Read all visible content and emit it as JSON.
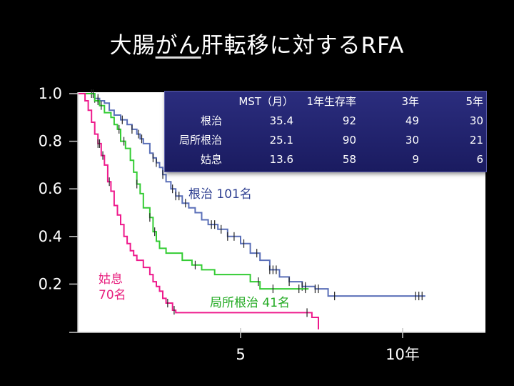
{
  "page_title": {
    "pre": "大腸",
    "underlined": "がん",
    "post": "肝転移に対するRFA"
  },
  "summary_table": {
    "headers": [
      "",
      "MST（月）",
      "1年生存率",
      "3年",
      "5年"
    ],
    "rows": [
      [
        "根治",
        "35.4",
        "92",
        "49",
        "30"
      ],
      [
        "局所根治",
        "25.1",
        "90",
        "30",
        "21"
      ],
      [
        "姑息",
        "13.6",
        "58",
        "9",
        "6"
      ]
    ]
  },
  "chart_data": {
    "type": "line",
    "title": "大腸がん肝転移に対するRFA",
    "xlabel": "",
    "ylabel": "",
    "xlim": [
      0,
      12.6
    ],
    "ylim": [
      0,
      1.0
    ],
    "y_ticks": [
      "1.0",
      "0.8",
      "0.6",
      "0.4",
      "0.2"
    ],
    "y_tick_values": [
      1.0,
      0.8,
      0.6,
      0.4,
      0.2
    ],
    "x_ticks": [
      "5",
      "10年"
    ],
    "x_tick_values": [
      5,
      10
    ],
    "x_unit": "年",
    "grid": false,
    "series": [
      {
        "name": "根治 101名",
        "label_text": "根治 101名",
        "color": "#5a6fb8",
        "label_color": "#2e3f91",
        "points": [
          [
            0,
            1.0
          ],
          [
            0.35,
            1.0
          ],
          [
            0.5,
            0.98
          ],
          [
            0.65,
            0.97
          ],
          [
            0.8,
            0.96
          ],
          [
            0.95,
            0.93
          ],
          [
            1.1,
            0.91
          ],
          [
            1.3,
            0.89
          ],
          [
            1.5,
            0.87
          ],
          [
            1.65,
            0.85
          ],
          [
            1.8,
            0.83
          ],
          [
            1.9,
            0.81
          ],
          [
            2.0,
            0.79
          ],
          [
            2.2,
            0.75
          ],
          [
            2.3,
            0.73
          ],
          [
            2.4,
            0.71
          ],
          [
            2.5,
            0.69
          ],
          [
            2.6,
            0.66
          ],
          [
            2.7,
            0.63
          ],
          [
            2.85,
            0.6
          ],
          [
            3.0,
            0.57
          ],
          [
            3.2,
            0.54
          ],
          [
            3.4,
            0.52
          ],
          [
            3.6,
            0.5
          ],
          [
            3.8,
            0.47
          ],
          [
            4.0,
            0.45
          ],
          [
            4.3,
            0.43
          ],
          [
            4.6,
            0.4
          ],
          [
            5.0,
            0.37
          ],
          [
            5.3,
            0.33
          ],
          [
            5.6,
            0.3
          ],
          [
            5.9,
            0.26
          ],
          [
            6.2,
            0.23
          ],
          [
            6.5,
            0.21
          ],
          [
            6.9,
            0.19
          ],
          [
            7.3,
            0.18
          ],
          [
            7.7,
            0.15
          ],
          [
            10.7,
            0.15
          ]
        ],
        "censor_x": [
          0.4,
          0.5,
          0.6,
          1.35,
          1.65,
          1.85,
          1.95,
          2.3,
          2.4,
          2.6,
          2.9,
          3.0,
          3.1,
          3.3,
          4.1,
          4.2,
          4.4,
          4.6,
          4.8,
          5.1,
          5.5,
          5.9,
          6.0,
          6.1,
          6.5,
          6.9,
          7.0,
          7.3,
          7.4,
          7.9,
          10.4,
          10.5,
          10.6
        ]
      },
      {
        "name": "局所根治 41名",
        "label_text": "局所根治 41名",
        "color": "#33cc33",
        "label_color": "#22aa22",
        "points": [
          [
            0,
            1.0
          ],
          [
            0.35,
            1.0
          ],
          [
            0.5,
            0.97
          ],
          [
            0.65,
            0.95
          ],
          [
            0.8,
            0.92
          ],
          [
            1.0,
            0.9
          ],
          [
            1.1,
            0.87
          ],
          [
            1.2,
            0.85
          ],
          [
            1.3,
            0.8
          ],
          [
            1.45,
            0.77
          ],
          [
            1.6,
            0.72
          ],
          [
            1.7,
            0.67
          ],
          [
            1.8,
            0.62
          ],
          [
            1.9,
            0.58
          ],
          [
            2.0,
            0.52
          ],
          [
            2.2,
            0.48
          ],
          [
            2.3,
            0.42
          ],
          [
            2.4,
            0.38
          ],
          [
            2.5,
            0.35
          ],
          [
            2.7,
            0.33
          ],
          [
            3.2,
            0.3
          ],
          [
            3.5,
            0.28
          ],
          [
            3.8,
            0.26
          ],
          [
            4.2,
            0.24
          ],
          [
            5.3,
            0.23
          ],
          [
            5.3,
            0.21
          ],
          [
            5.5,
            0.21
          ],
          [
            5.6,
            0.18
          ],
          [
            7.1,
            0.18
          ]
        ],
        "censor_x": [
          0.45,
          0.6,
          0.7,
          1.25,
          1.4,
          1.8,
          2.2,
          2.35,
          3.6,
          5.55,
          6.0,
          6.8,
          7.0
        ]
      },
      {
        "name": "姑息",
        "label_text": "姑息\n70名",
        "label_lines": [
          "姑息",
          "70名"
        ],
        "color": "#ee1a8c",
        "label_color": "#e8207f",
        "points": [
          [
            0,
            1.0
          ],
          [
            0.2,
            0.97
          ],
          [
            0.3,
            0.93
          ],
          [
            0.4,
            0.88
          ],
          [
            0.5,
            0.83
          ],
          [
            0.6,
            0.79
          ],
          [
            0.7,
            0.74
          ],
          [
            0.8,
            0.7
          ],
          [
            0.9,
            0.63
          ],
          [
            1.0,
            0.59
          ],
          [
            1.1,
            0.53
          ],
          [
            1.2,
            0.49
          ],
          [
            1.3,
            0.45
          ],
          [
            1.4,
            0.4
          ],
          [
            1.5,
            0.37
          ],
          [
            1.6,
            0.34
          ],
          [
            1.7,
            0.32
          ],
          [
            1.8,
            0.3
          ],
          [
            2.0,
            0.27
          ],
          [
            2.2,
            0.24
          ],
          [
            2.3,
            0.21
          ],
          [
            2.4,
            0.19
          ],
          [
            2.5,
            0.17
          ],
          [
            2.6,
            0.14
          ],
          [
            2.7,
            0.12
          ],
          [
            2.9,
            0.09
          ],
          [
            3.0,
            0.08
          ],
          [
            4.3,
            0.08
          ],
          [
            7.2,
            0.08
          ],
          [
            7.2,
            0.06
          ],
          [
            7.4,
            0.04
          ],
          [
            7.4,
            0.01
          ]
        ],
        "censor_x": [
          0.6,
          0.65,
          0.75,
          0.95,
          2.75,
          2.95,
          7.05
        ]
      }
    ]
  }
}
